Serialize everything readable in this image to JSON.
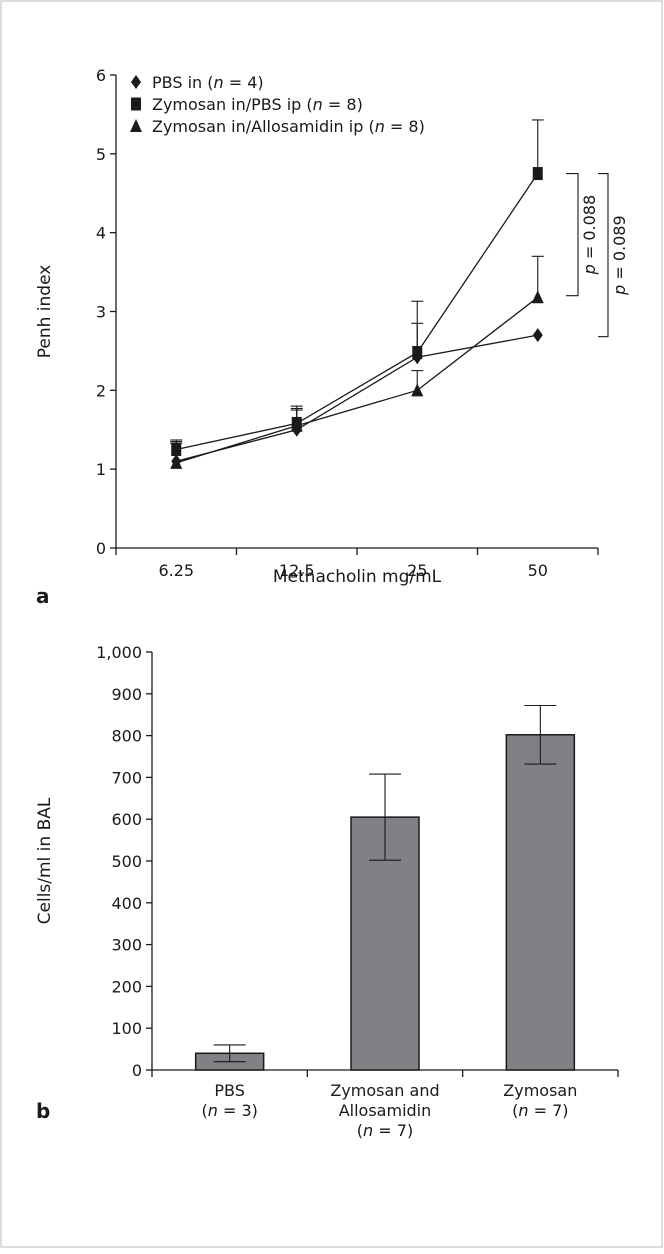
{
  "chart_data": [
    {
      "type": "line",
      "panel_label": "a",
      "xlabel": "Methacholin mg/mL",
      "ylabel": "Penh index",
      "categories": [
        "6.25",
        "12.5",
        "25",
        "50"
      ],
      "ylim": [
        0,
        6
      ],
      "yticks": [
        "0",
        "1",
        "2",
        "3",
        "4",
        "5",
        "6"
      ],
      "legend_position": "top-left",
      "series": [
        {
          "name": "PBS in (n = 4)",
          "name_parts": {
            "pre": "PBS in (",
            "ital": "n",
            "post": " = 4)"
          },
          "marker": "diamond",
          "values": [
            1.1,
            1.5,
            2.42,
            2.7
          ],
          "err": [
            0.25,
            0.25,
            0.43,
            0
          ]
        },
        {
          "name": "Zymosan in/PBS ip (n = 8)",
          "name_parts": {
            "pre": "Zymosan in/PBS ip (",
            "ital": "n",
            "post": " = 8)"
          },
          "marker": "square",
          "values": [
            1.25,
            1.58,
            2.48,
            4.75
          ],
          "err": [
            0.12,
            0.22,
            0.65,
            0.68
          ]
        },
        {
          "name": "Zymosan in/Allosamidin ip (n = 8)",
          "name_parts": {
            "pre": "Zymosan in/Allosamidin ip (",
            "ital": "n",
            "post": " = 8)"
          },
          "marker": "triangle",
          "values": [
            1.08,
            1.55,
            2.0,
            3.18
          ],
          "err": [
            0.25,
            0.22,
            0.25,
            0.52
          ]
        }
      ],
      "annotations": [
        {
          "text": "p = 0.088",
          "ital": "p",
          "rest": " = 0.088",
          "y_top": 4.75,
          "y_bottom": 3.2
        },
        {
          "text": "p = 0.089",
          "ital": "p",
          "rest": " = 0.089",
          "y_top": 4.75,
          "y_bottom": 2.68
        }
      ]
    },
    {
      "type": "bar",
      "panel_label": "b",
      "xlabel": "",
      "ylabel": "Cells/ml in BAL",
      "ylim": [
        0,
        1000
      ],
      "yticks": [
        "0",
        "100",
        "200",
        "300",
        "400",
        "500",
        "600",
        "700",
        "800",
        "900",
        "1,000"
      ],
      "bar_color": "#808085",
      "categories": [
        {
          "lines": [
            {
              "t": "PBS"
            },
            {
              "pre": "(",
              "ital": "n",
              "post": " = 3)"
            }
          ]
        },
        {
          "lines": [
            {
              "t": "Zymosan and"
            },
            {
              "t": "Allosamidin"
            },
            {
              "pre": "(",
              "ital": "n",
              "post": " = 7)"
            }
          ]
        },
        {
          "lines": [
            {
              "t": "Zymosan"
            },
            {
              "pre": "(",
              "ital": "n",
              "post": " = 7)"
            }
          ]
        }
      ],
      "values": [
        40,
        605,
        802
      ],
      "err": [
        20,
        103,
        70
      ]
    }
  ]
}
